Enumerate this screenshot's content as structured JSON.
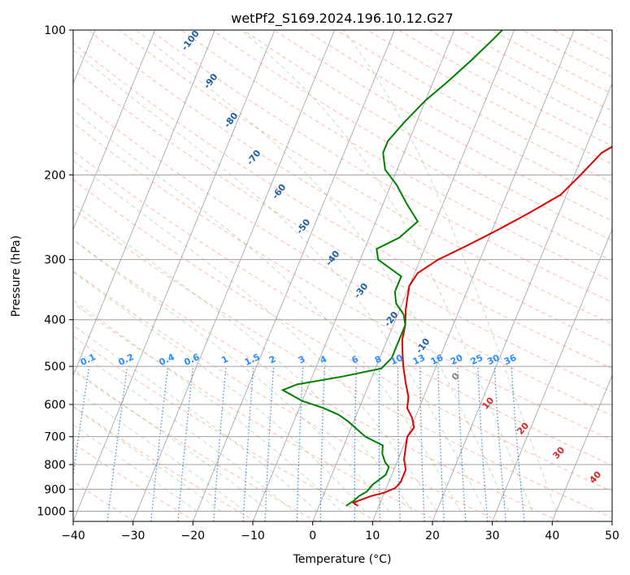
{
  "chart_data": {
    "type": "line",
    "title": "wetPf2_S169.2024.196.10.12.G27",
    "xlabel": "Temperature (°C)",
    "ylabel": "Pressure (hPa)",
    "xlim": [
      -40,
      50
    ],
    "ylim": [
      1050,
      100
    ],
    "y_scale": "log",
    "x_ticks": [
      -40,
      -30,
      -20,
      -10,
      0,
      10,
      20,
      30,
      40,
      50
    ],
    "x_tick_labels": [
      "−40",
      "−30",
      "−20",
      "−10",
      "0",
      "10",
      "20",
      "30",
      "40",
      "50"
    ],
    "y_ticks": [
      1000,
      900,
      800,
      700,
      600,
      500,
      400,
      300,
      200,
      100
    ],
    "y_tick_labels": [
      "1000",
      "900",
      "800",
      "700",
      "600",
      "500",
      "400",
      "300",
      "200",
      "100"
    ],
    "grid": true,
    "series": [
      {
        "color": "#e00000",
        "points": [
          [
            6.5,
            975
          ],
          [
            5.5,
            960
          ],
          [
            8,
            930
          ],
          [
            10,
            915
          ],
          [
            11.5,
            895
          ],
          [
            12,
            870
          ],
          [
            12,
            820
          ],
          [
            11,
            780
          ],
          [
            10.5,
            740
          ],
          [
            10,
            700
          ],
          [
            10.5,
            670
          ],
          [
            9.5,
            640
          ],
          [
            8,
            610
          ],
          [
            7.5,
            580
          ],
          [
            6,
            540
          ],
          [
            4.5,
            500
          ],
          [
            3.5,
            470
          ],
          [
            2.5,
            440
          ],
          [
            2,
            410
          ],
          [
            1,
            380
          ],
          [
            0.5,
            360
          ],
          [
            0,
            340
          ],
          [
            0.5,
            320
          ],
          [
            3,
            300
          ],
          [
            7,
            280
          ],
          [
            11,
            260
          ],
          [
            15,
            240
          ],
          [
            19,
            220
          ],
          [
            21,
            200
          ],
          [
            23,
            180
          ],
          [
            27,
            165
          ],
          [
            30,
            150
          ],
          [
            32,
            135
          ],
          [
            34,
            120
          ],
          [
            36,
            110
          ],
          [
            38,
            100
          ]
        ]
      },
      {
        "color": "#008000",
        "points": [
          [
            4.5,
            975
          ],
          [
            5.5,
            950
          ],
          [
            6,
            930
          ],
          [
            7,
            910
          ],
          [
            7.5,
            880
          ],
          [
            9,
            840
          ],
          [
            9,
            810
          ],
          [
            8,
            790
          ],
          [
            7,
            760
          ],
          [
            6.5,
            730
          ],
          [
            3,
            700
          ],
          [
            -1,
            650
          ],
          [
            -3,
            630
          ],
          [
            -6,
            610
          ],
          [
            -10,
            590
          ],
          [
            -14,
            560
          ],
          [
            -12,
            545
          ],
          [
            -5,
            525
          ],
          [
            1,
            505
          ],
          [
            2,
            480
          ],
          [
            2,
            440
          ],
          [
            2,
            410
          ],
          [
            1,
            390
          ],
          [
            -1,
            370
          ],
          [
            -2,
            350
          ],
          [
            -2,
            325
          ],
          [
            -7,
            300
          ],
          [
            -8,
            285
          ],
          [
            -5,
            270
          ],
          [
            -3,
            250
          ],
          [
            -6,
            230
          ],
          [
            -9,
            210
          ],
          [
            -12,
            195
          ],
          [
            -13.5,
            180
          ],
          [
            -13.5,
            170
          ],
          [
            -12,
            155
          ],
          [
            -10,
            140
          ],
          [
            -8,
            130
          ],
          [
            -7,
            125
          ],
          [
            -5,
            115
          ],
          [
            -3,
            105
          ],
          [
            -2,
            100
          ]
        ]
      }
    ],
    "dry_adiabat_labels": [
      "-100",
      "-90",
      "-80",
      "-70",
      "-60",
      "-50",
      "-40",
      "-30",
      "-20",
      "-10"
    ],
    "mixing_ratio_labels": [
      "0.1",
      "0.2",
      "0.4",
      "0.6",
      "1",
      "1.5",
      "2",
      "3",
      "4",
      "6",
      "8",
      "10",
      "13",
      "16",
      "20",
      "25",
      "30",
      "36"
    ],
    "moist_adiabat_labels": [
      "0",
      "10",
      "20",
      "30",
      "40"
    ],
    "colors": {
      "temperature": "#e00000",
      "dewpoint": "#008000",
      "dry_adiabat": "#ff8060",
      "moist_adiabat": "#6abf69",
      "mixing_ratio": "#1f77d4",
      "isotherm": "#808080",
      "dry_label": "#1f5f9f",
      "moist_label": "#d62728",
      "mixing_label": "#2b8cff"
    }
  }
}
